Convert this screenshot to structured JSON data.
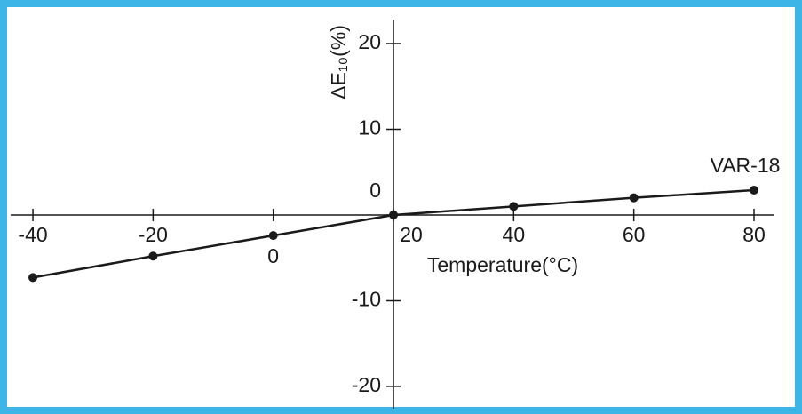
{
  "chart_data": {
    "type": "line",
    "x_label": "Temperature(°C)",
    "y_label": "ΔE₁₀(%)",
    "x": [
      -40,
      -20,
      0,
      20,
      40,
      60,
      80
    ],
    "series": [
      {
        "name": "VAR-18",
        "color": "#1a1a1a",
        "values": [
          -7.3,
          -4.8,
          -2.4,
          0,
          1.0,
          2.0,
          2.9
        ]
      }
    ],
    "xlim": [
      -43.7,
      83.4
    ],
    "xticks": [
      -40,
      -20,
      0,
      20,
      40,
      60,
      80
    ],
    "ylim": [
      -22.6,
      22.8
    ],
    "yticks": [
      20,
      10,
      0,
      -10,
      -20
    ],
    "axis_cross": {
      "x": 20,
      "y": 0
    },
    "grid": false
  }
}
